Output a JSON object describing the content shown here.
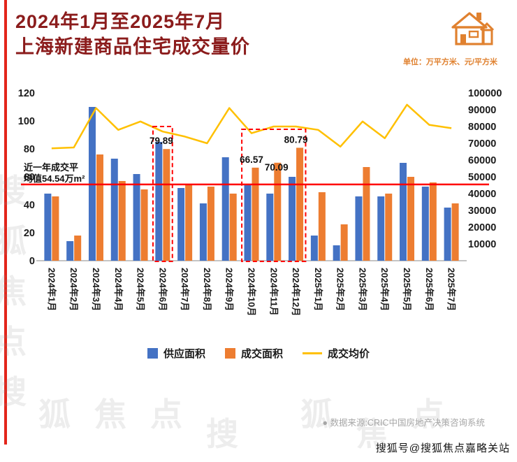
{
  "page": {
    "title_line1": "2024年1月至2025年7月",
    "title_line2": "上海新建商品住宅成交量价",
    "unit_label": "单位：万平方米、元/平方米",
    "source": "● 数据来源:CRIC中国房地产决策咨询系统",
    "watermark_handle": "搜狐号@搜狐焦点嘉略关站"
  },
  "legend": {
    "items": [
      {
        "label": "供应面积",
        "color": "#4472C4",
        "type": "square"
      },
      {
        "label": "成交面积",
        "color": "#ED7D31",
        "type": "square"
      },
      {
        "label": "成交均价",
        "color": "#FFC000",
        "type": "line"
      }
    ]
  },
  "watermark": {
    "glyphs": [
      "搜",
      "狐",
      "焦",
      "点"
    ]
  },
  "chart_data": {
    "type": "bar",
    "categories": [
      "2024年1月",
      "2024年2月",
      "2024年3月",
      "2024年4月",
      "2024年5月",
      "2024年6月",
      "2024年7月",
      "2024年8月",
      "2024年9月",
      "2024年10月",
      "2024年11月",
      "2024年12月",
      "2025年1月",
      "2025年2月",
      "2025年3月",
      "2025年4月",
      "2025年5月",
      "2025年6月",
      "2025年7月"
    ],
    "series": [
      {
        "name": "供应面积",
        "type": "bar",
        "axis": "left",
        "color": "#4472C4",
        "values": [
          48,
          14,
          110,
          73,
          62,
          85,
          52,
          41,
          74,
          54,
          48,
          60,
          18,
          11,
          46,
          46,
          70,
          53,
          38
        ]
      },
      {
        "name": "成交面积",
        "type": "bar",
        "axis": "left",
        "color": "#ED7D31",
        "values": [
          46,
          18,
          76,
          57,
          51,
          79.89,
          54,
          53,
          48,
          66.57,
          70.09,
          80.79,
          49,
          26,
          67,
          48,
          60,
          56,
          41
        ]
      },
      {
        "name": "成交均价",
        "type": "line",
        "axis": "right",
        "color": "#FFC000",
        "values": [
          67000,
          67500,
          91000,
          78000,
          83000,
          77000,
          74000,
          70000,
          91000,
          76000,
          80000,
          80000,
          78000,
          68000,
          83000,
          73000,
          93000,
          81000,
          79000
        ]
      }
    ],
    "left_axis": {
      "min": 0,
      "max": 120,
      "step": 20
    },
    "right_axis": {
      "min": 0,
      "max": 100000,
      "step": 10000
    },
    "avg_line": {
      "value": 54.54,
      "color": "#FF0000",
      "label_line1": "近一年成交平",
      "label_line2": "均值54.54万m²"
    },
    "highlight_boxes": [
      {
        "start": 5,
        "end": 5,
        "top": 96
      },
      {
        "start": 9,
        "end": 11,
        "top": 94
      }
    ],
    "point_labels": [
      {
        "index": 5,
        "text": "79.89",
        "dx": -2,
        "dy": 0
      },
      {
        "index": 9,
        "text": "66.57",
        "dx": 0,
        "dy": 0
      },
      {
        "index": 10,
        "text": "70.09",
        "dx": 4,
        "dy": 18
      },
      {
        "index": 11,
        "text": "80.79",
        "dx": 0,
        "dy": 0
      }
    ],
    "title": "2024年1月至2025年7月上海新建商品住宅成交量价",
    "legend_position": "bottom",
    "grid": false
  }
}
